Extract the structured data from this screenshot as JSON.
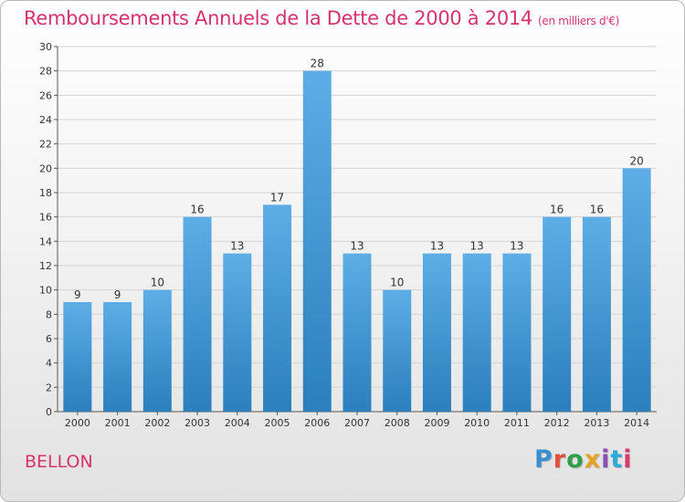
{
  "title": "Remboursements Annuels de la Dette de 2000 à 2014",
  "unit": "(en milliers d'€)",
  "place": "BELLON",
  "logo": {
    "text": "Proxiti",
    "colors": [
      "#3a8fd0",
      "#e0503a",
      "#2e9f4a",
      "#e8a020",
      "#8a4fb0",
      "#2ea8d8",
      "#d83a6a"
    ]
  },
  "colors": {
    "title": "#d6336c",
    "bar_light": "#5dade6",
    "bar_dark": "#2b7fbd",
    "grid": "#d4d4d4"
  },
  "chart_data": {
    "type": "bar",
    "title": "Remboursements Annuels de la Dette de 2000 à 2014",
    "categories": [
      "2000",
      "2001",
      "2002",
      "2003",
      "2004",
      "2005",
      "2006",
      "2007",
      "2008",
      "2009",
      "2010",
      "2011",
      "2012",
      "2013",
      "2014"
    ],
    "values": [
      9,
      9,
      10,
      16,
      13,
      17,
      28,
      13,
      10,
      13,
      13,
      13,
      16,
      16,
      20
    ],
    "data_labels": [
      "9",
      "9",
      "10",
      "16",
      "13",
      "17",
      "28",
      "13",
      "10",
      "13",
      "13",
      "13",
      "16",
      "16",
      "20"
    ],
    "xlabel": "",
    "ylabel": "",
    "ylim": [
      0,
      30
    ],
    "yticks": [
      "0",
      "2",
      "4",
      "6",
      "8",
      "10",
      "12",
      "14",
      "16",
      "18",
      "20",
      "22",
      "24",
      "26",
      "28",
      "30"
    ],
    "grid": true
  }
}
